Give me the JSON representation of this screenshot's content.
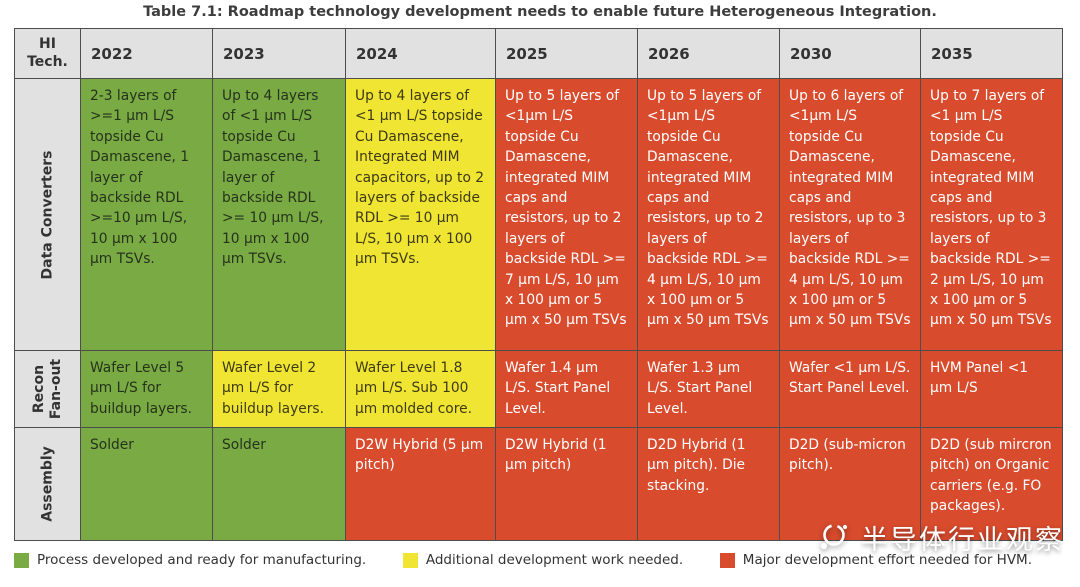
{
  "title": "Table 7.1: Roadmap technology development needs to enable future Heterogeneous Integration.",
  "colors": {
    "green": "#79aa43",
    "yellow": "#f0e532",
    "red": "#d84b2d",
    "header_bg": "#e1e1e1",
    "border": "#4d4d4d",
    "text_on_green": "#26331c",
    "text_on_yellow": "#3d3a14",
    "text_on_red": "#ffffff",
    "title_text": "#3d3d3d"
  },
  "table": {
    "corner_label": "HI\nTech.",
    "years": [
      "2022",
      "2023",
      "2024",
      "2025",
      "2026",
      "2030",
      "2035"
    ],
    "rows": [
      {
        "id": "data-converters",
        "label": "Data Converters",
        "cells": [
          {
            "status": "green",
            "text": "2-3 layers of >=1 μm L/S topside Cu Damascene, 1 layer of backside RDL >=10 μm L/S, 10 μm x 100 μm TSVs."
          },
          {
            "status": "green",
            "text": "Up to 4 layers of <1 μm L/S topside Cu Damascene, 1 layer of backside RDL >= 10 μm L/S, 10 μm x 100 μm TSVs."
          },
          {
            "status": "yellow",
            "text": "Up to 4 layers of <1 μm L/S topside Cu Damascene, Integrated MIM capacitors, up to 2 layers of backside RDL >= 10 μm L/S, 10 μm x 100 μm TSVs."
          },
          {
            "status": "red",
            "text": "Up to 5 layers of <1μm L/S topside Cu Damascene, integrated MIM caps and resistors, up to 2 layers of backside RDL >= 7 μm L/S, 10 μm x 100 μm or 5 μm x 50 μm TSVs"
          },
          {
            "status": "red",
            "text": "Up to 5 layers of <1μm L/S topside Cu Damascene, integrated MIM caps and resistors, up to 2 layers of backside RDL >= 4 μm L/S, 10 μm x 100 μm or 5 μm x 50 μm TSVs"
          },
          {
            "status": "red",
            "text": "Up to 6 layers of <1μm L/S topside Cu Damascene, integrated MIM caps and resistors, up to 3 layers of backside RDL >= 4 μm L/S, 10 μm x 100 μm or 5 μm x 50 μm TSVs"
          },
          {
            "status": "red",
            "text": "Up to 7 layers of <1 μm L/S topside Cu Damascene, integrated MIM caps and resistors, up to 3 layers of backside RDL >= 2 μm L/S, 10 μm x 100 μm or 5 μm x 50 μm TSVs"
          }
        ]
      },
      {
        "id": "recon-fan-out",
        "label": "Recon\nFan-out",
        "cells": [
          {
            "status": "green",
            "text": "Wafer Level 5 μm L/S for buildup layers."
          },
          {
            "status": "yellow",
            "text": "Wafer Level 2 μm L/S for buildup layers."
          },
          {
            "status": "yellow",
            "text": "Wafer Level 1.8 μm L/S. Sub 100 μm molded core."
          },
          {
            "status": "red",
            "text": "Wafer 1.4 μm L/S. Start Panel Level."
          },
          {
            "status": "red",
            "text": "Wafer 1.3 μm L/S. Start Panel Level."
          },
          {
            "status": "red",
            "text": "Wafer <1 μm L/S. Start Panel Level."
          },
          {
            "status": "red",
            "text": "HVM Panel <1 μm L/S"
          }
        ]
      },
      {
        "id": "assembly",
        "label": "Assembly",
        "cells": [
          {
            "status": "green",
            "text": "Solder"
          },
          {
            "status": "green",
            "text": "Solder"
          },
          {
            "status": "red",
            "text": "D2W Hybrid (5 μm pitch)"
          },
          {
            "status": "red",
            "text": "D2W Hybrid (1 μm pitch)"
          },
          {
            "status": "red",
            "text": "D2D Hybrid (1 μm pitch). Die stacking."
          },
          {
            "status": "red",
            "text": "D2D (sub-micron pitch)."
          },
          {
            "status": "red",
            "text": "D2D (sub mircron pitch) on Organic carriers (e.g. FO packages)."
          }
        ]
      }
    ]
  },
  "legend": [
    {
      "status": "green",
      "label": "Process developed and ready for manufacturing."
    },
    {
      "status": "yellow",
      "label": "Additional development work needed."
    },
    {
      "status": "red",
      "label": "Major development effort needed for HVM."
    }
  ],
  "watermark": {
    "text": "半导体行业观察"
  }
}
